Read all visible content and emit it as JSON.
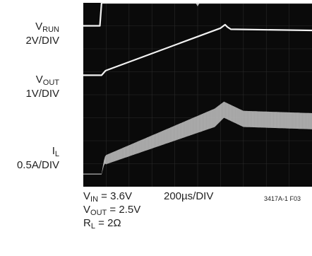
{
  "chart_data": {
    "type": "line",
    "title": "",
    "grid": true,
    "x_divisions": 10,
    "y_divisions": 8,
    "x_scale_label": "200µs/DIV",
    "x_axis": {
      "label": "200µs/DIV",
      "range_us": [
        0,
        2000
      ]
    },
    "series": [
      {
        "name": "VRUN",
        "channel_label": {
          "main": "V",
          "sub": "RUN",
          "scale": "2V/DIV"
        },
        "color": "#f2f2f2",
        "points_us_div": [
          [
            0,
            7.0
          ],
          [
            145,
            7.0
          ],
          [
            160,
            8.0
          ],
          [
            2000,
            8.0
          ]
        ]
      },
      {
        "name": "VOUT",
        "channel_label": {
          "main": "V",
          "sub": "OUT",
          "scale": "1V/DIV"
        },
        "color": "#f2f2f2",
        "points_us_div": [
          [
            0,
            4.85
          ],
          [
            160,
            4.85
          ],
          [
            195,
            5.05
          ],
          [
            1200,
            6.9
          ],
          [
            1240,
            7.05
          ],
          [
            1260,
            6.95
          ],
          [
            1290,
            6.85
          ],
          [
            2000,
            6.8
          ]
        ]
      },
      {
        "name": "IL",
        "channel_label": {
          "main": "I",
          "sub": "L",
          "scale": "0.5A/DIV"
        },
        "color": "#cfcfcf",
        "band": true,
        "center_us_div": [
          [
            0,
            0.55
          ],
          [
            160,
            0.55
          ],
          [
            185,
            1.15
          ],
          [
            1150,
            3.0
          ],
          [
            1230,
            3.35
          ],
          [
            1400,
            2.95
          ],
          [
            2000,
            2.85
          ]
        ],
        "half_width_div": [
          [
            0,
            0.02
          ],
          [
            160,
            0.02
          ],
          [
            200,
            0.2
          ],
          [
            1150,
            0.4
          ],
          [
            1230,
            0.35
          ],
          [
            2000,
            0.35
          ]
        ]
      }
    ]
  },
  "labels": {
    "vrun": {
      "main": "V",
      "sub": "RUN",
      "scale": "2V/DIV"
    },
    "vout": {
      "main": "V",
      "sub": "OUT",
      "scale": "1V/DIV"
    },
    "il": {
      "main": "I",
      "sub": "L",
      "scale": "0.5A/DIV"
    }
  },
  "conditions": {
    "vin": {
      "main": "V",
      "sub": "IN",
      "value": " = 3.6V"
    },
    "vout": {
      "main": "V",
      "sub": "OUT",
      "value": " = 2.5V"
    },
    "rl": {
      "main": "R",
      "sub": "L",
      "value": " = 2Ω"
    }
  },
  "timebase": "200µs/DIV",
  "figure_id": "3417A-1 F03"
}
